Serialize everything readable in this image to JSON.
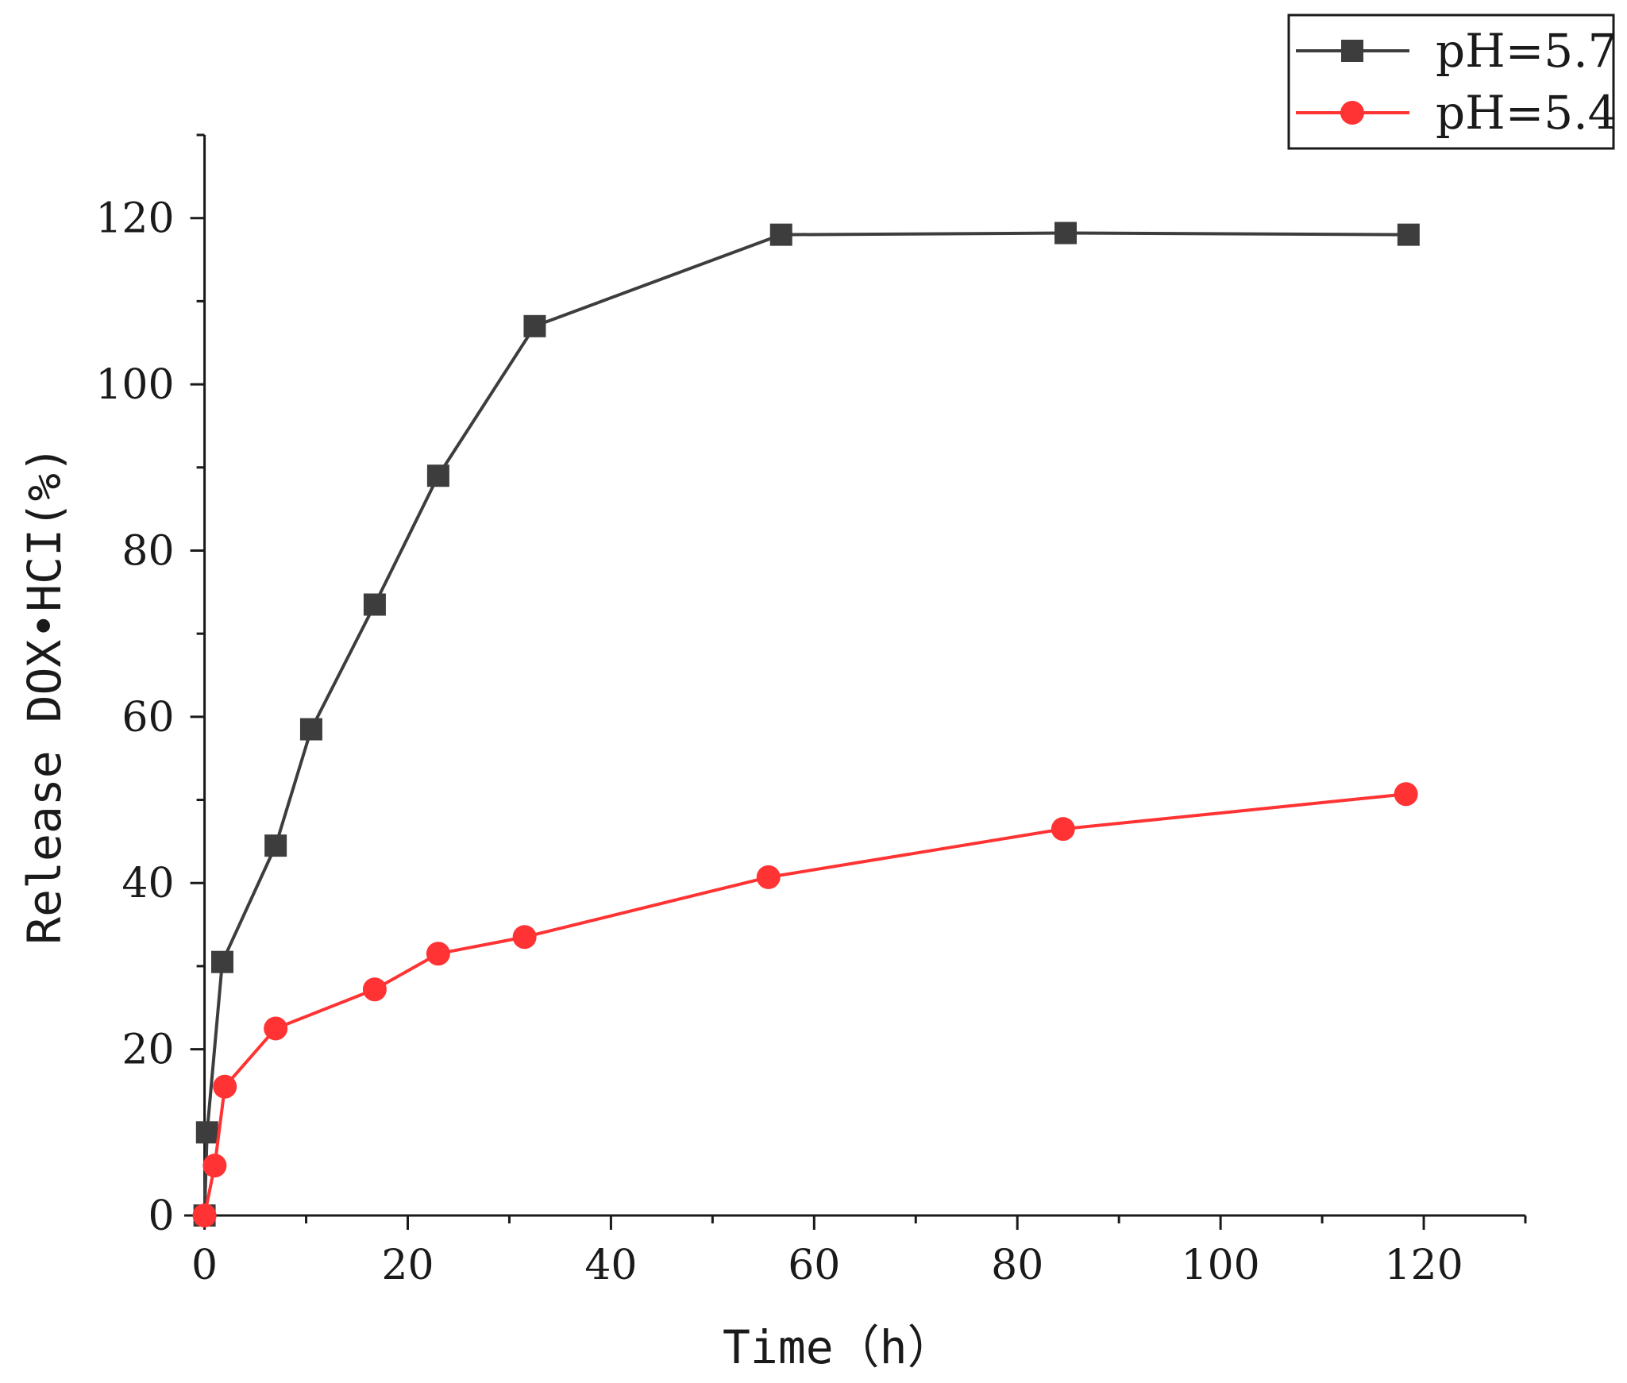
{
  "chart_data": {
    "type": "line",
    "title": "",
    "xlabel": "Time（h）",
    "ylabel": "Release DOX•HCI(%)",
    "xlim": [
      -2,
      130
    ],
    "ylim": [
      0,
      130
    ],
    "x_ticks": [
      0,
      20,
      40,
      60,
      80,
      100,
      120
    ],
    "y_ticks": [
      0,
      20,
      40,
      60,
      80,
      100,
      120
    ],
    "grid": false,
    "legend_position": "top-right",
    "series": [
      {
        "name": "pH=5.7",
        "color": "#3d3d3d",
        "marker": "square",
        "x": [
          0,
          0.25,
          1.75,
          7,
          10.5,
          16.75,
          23,
          32.5,
          56.75,
          84.75,
          118.5
        ],
        "y": [
          0,
          10,
          30.5,
          44.5,
          58.5,
          73.5,
          89,
          107,
          118,
          118.2,
          118
        ]
      },
      {
        "name": "pH=5.4",
        "color": "#ff3333",
        "marker": "circle",
        "x": [
          0,
          1,
          2,
          7,
          16.75,
          23,
          31.5,
          55.5,
          84.5,
          118.25
        ],
        "y": [
          0,
          6,
          15.5,
          22.5,
          27.2,
          31.5,
          33.5,
          40.7,
          46.5,
          50.7
        ]
      }
    ]
  }
}
